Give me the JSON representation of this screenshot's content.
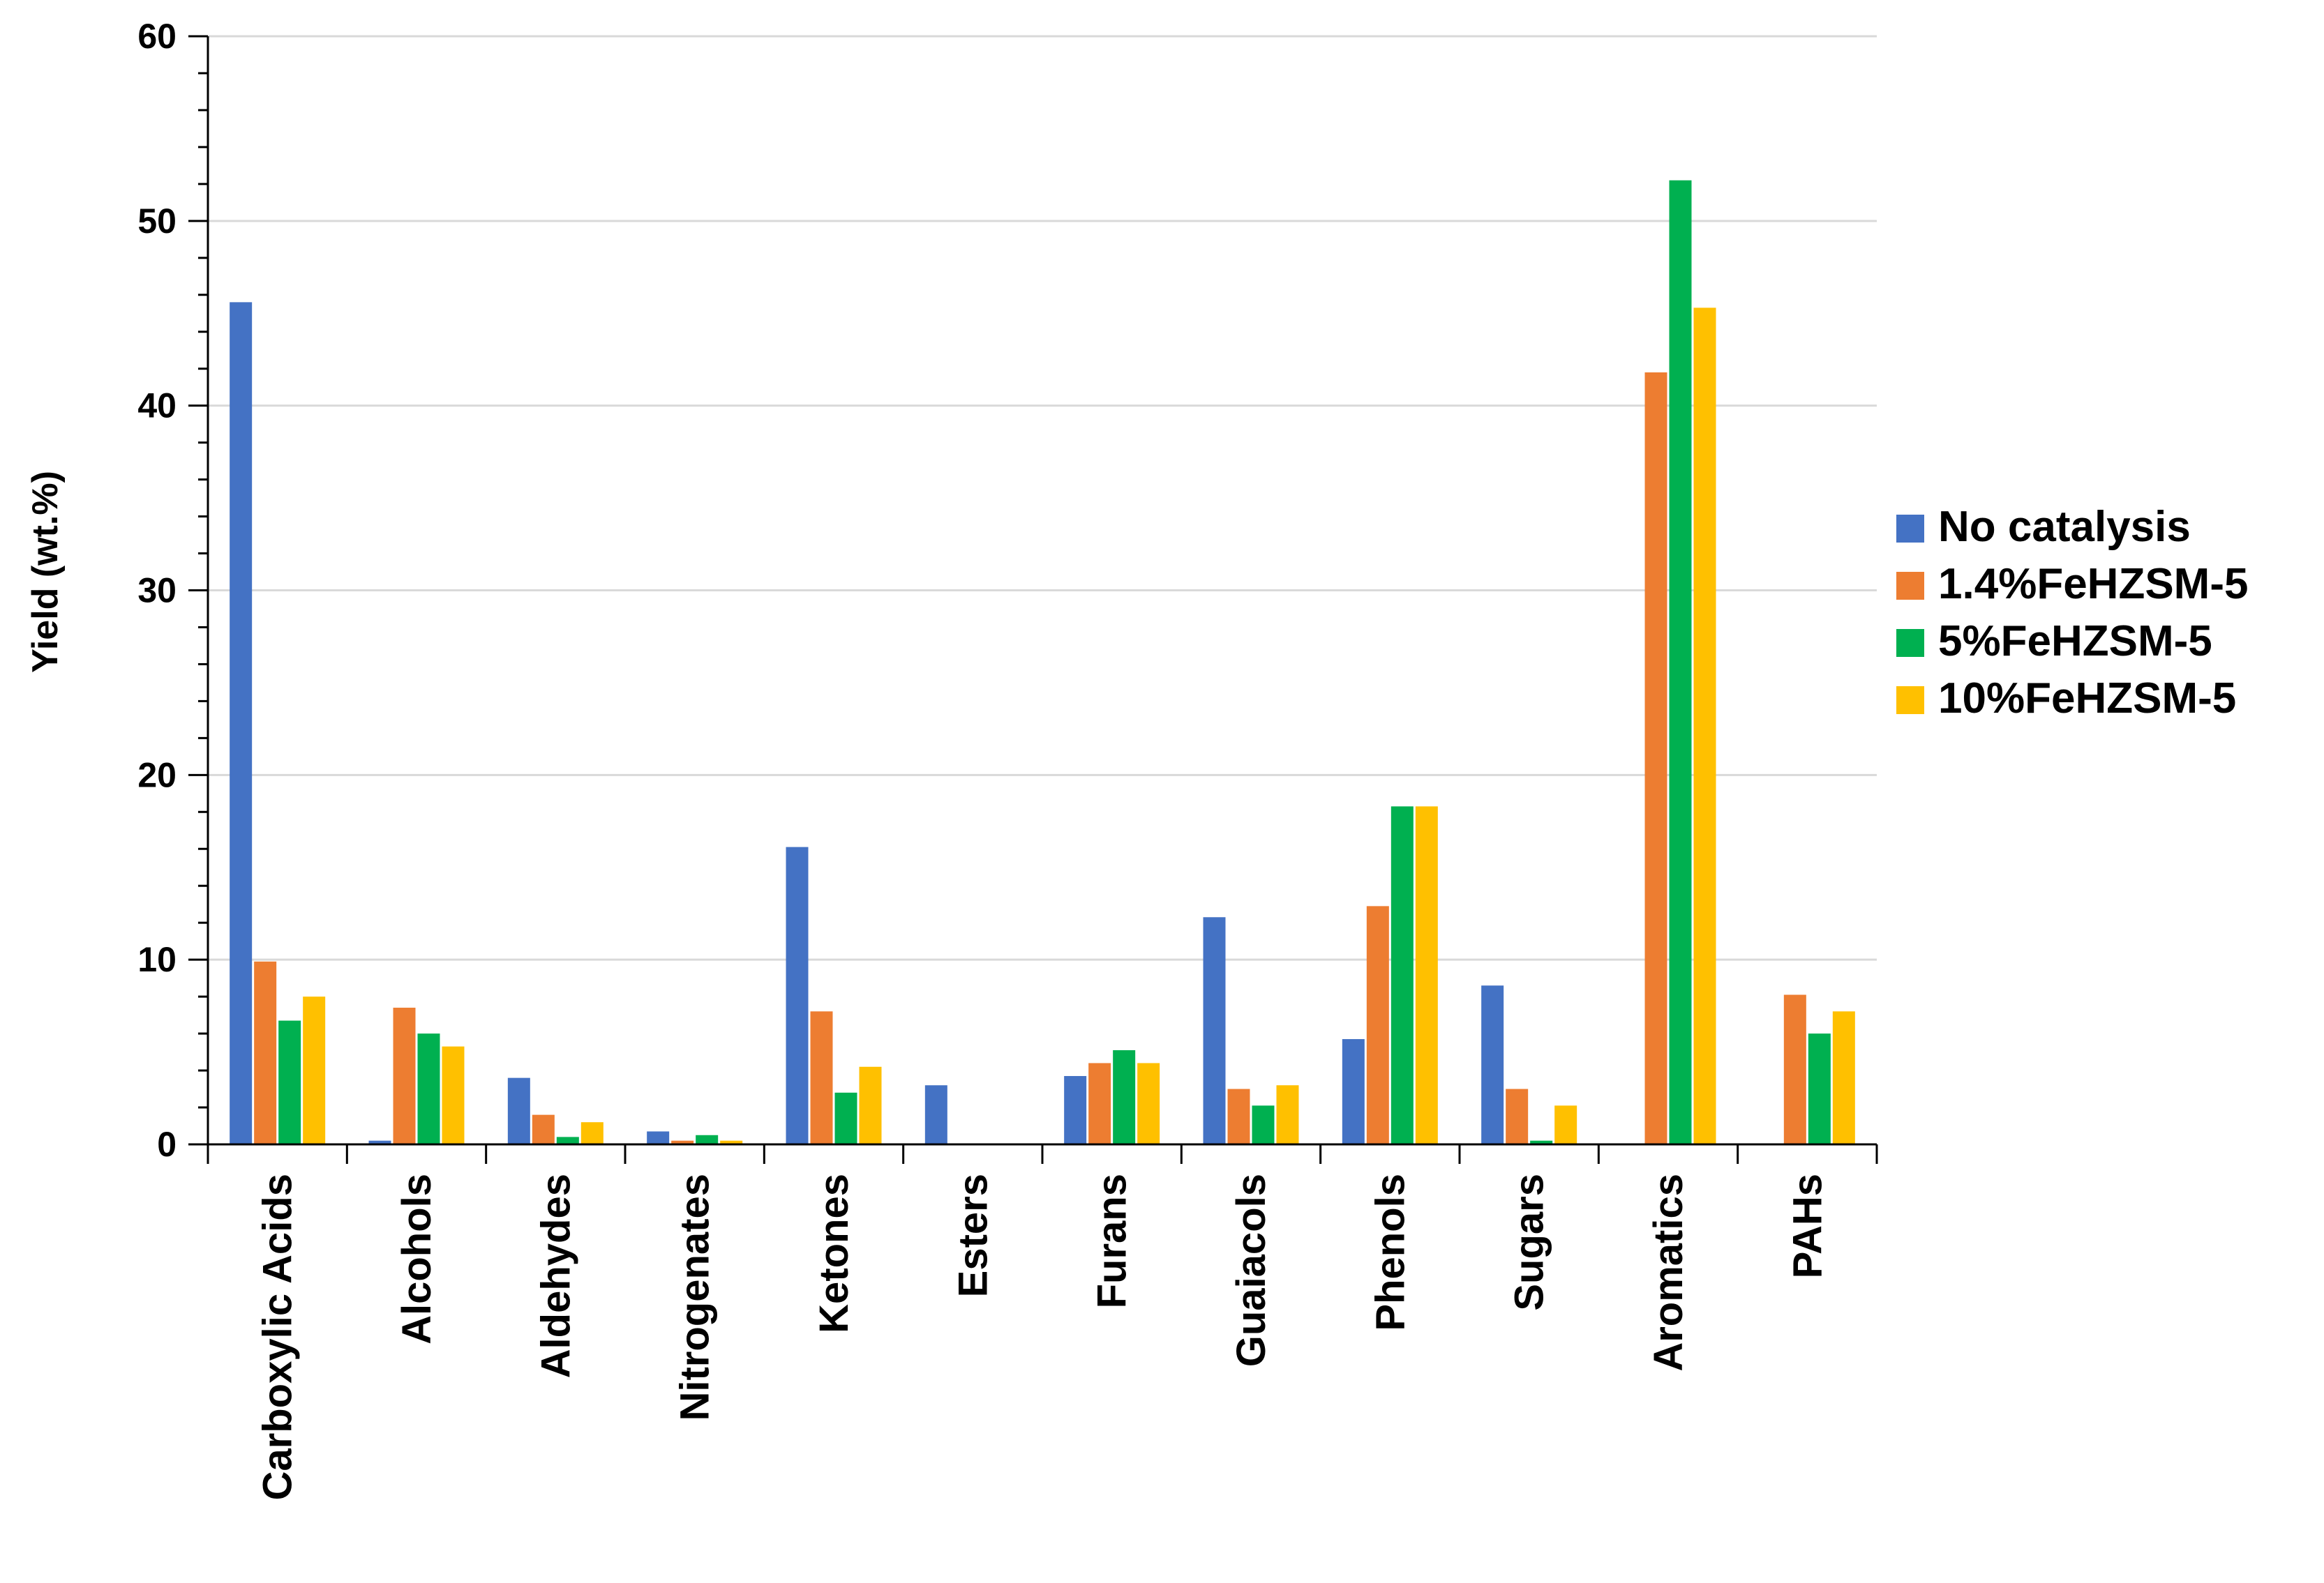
{
  "chart_data": {
    "type": "bar",
    "title": "",
    "xlabel": "",
    "ylabel": "Yield (wt.%)",
    "ylim": [
      0,
      60
    ],
    "yticks": [
      0,
      10,
      20,
      30,
      40,
      50,
      60
    ],
    "grid": true,
    "legend_position": "right",
    "categories": [
      "Carboxylic Acids",
      "Alcohols",
      "Aldehydes",
      "Nitrogenates",
      "Ketones",
      "Esters",
      "Furans",
      "Guaiacols",
      "Phenols",
      "Sugars",
      "Aromatics",
      "PAHs"
    ],
    "series": [
      {
        "name": "No catalysis",
        "color": "#4472C4",
        "values": [
          45.6,
          0.2,
          3.6,
          0.7,
          16.1,
          3.2,
          3.7,
          12.3,
          5.7,
          8.6,
          0,
          0
        ]
      },
      {
        "name": "1.4%FeHZSM-5",
        "color": "#ED7D31",
        "values": [
          9.9,
          7.4,
          1.6,
          0.2,
          7.2,
          0,
          4.4,
          3.0,
          12.9,
          3.0,
          41.8,
          8.1
        ]
      },
      {
        "name": "5%FeHZSM-5",
        "color": "#00B050",
        "values": [
          6.7,
          6.0,
          0.4,
          0.5,
          2.8,
          0,
          5.1,
          2.1,
          18.3,
          0.2,
          52.2,
          6.0
        ]
      },
      {
        "name": "10%FeHZSM-5",
        "color": "#FFC000",
        "values": [
          8.0,
          5.3,
          1.2,
          0.2,
          4.2,
          0,
          4.4,
          3.2,
          18.3,
          2.1,
          45.3,
          7.2
        ]
      }
    ]
  }
}
